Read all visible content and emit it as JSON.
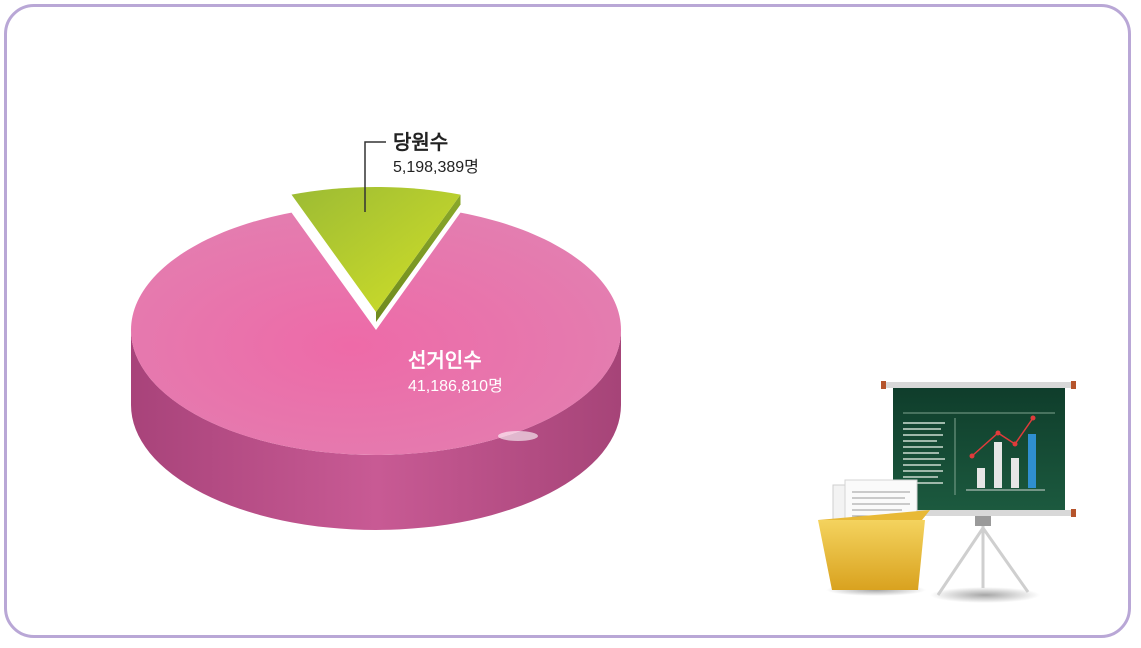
{
  "chart_data": {
    "type": "pie",
    "slices": [
      {
        "label": "선거인수",
        "value": 41186810,
        "value_text": "41,186,810명",
        "color": "#e86aa6"
      },
      {
        "label": "당원수",
        "value": 5198389,
        "value_text": "5,198,389명",
        "color": "#a4c43a"
      }
    ],
    "exploded": "당원수",
    "style": "3d"
  },
  "illustration": {
    "icon": "presentation-board-with-folder-icon"
  }
}
